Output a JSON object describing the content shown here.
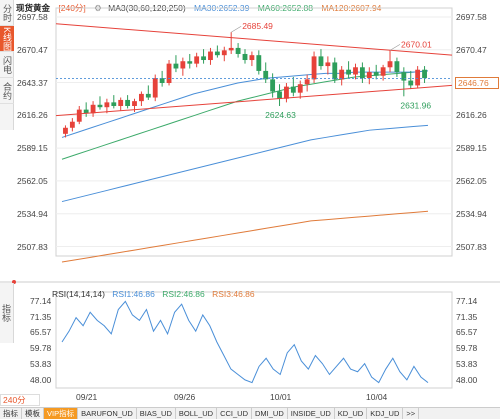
{
  "legend": {
    "title": "现货黄金",
    "period": "[240分]",
    "ma_name": "MA3(30,60,120,250)",
    "ma30": "MA30:2652.39",
    "ma60": "MA60:2652.88",
    "ma120": "MA120:2607.94"
  },
  "tabs": {
    "left": [
      "分时图",
      "K线图",
      "闪电图",
      "合约资料"
    ],
    "active_left": "K线图",
    "indicator": "指标"
  },
  "price_axis": {
    "left": [
      "2697.58",
      "2670.47",
      "2643.37",
      "2616.26",
      "2589.15",
      "2562.05",
      "2534.94",
      "2507.83"
    ],
    "right": [
      "2697.58",
      "2670.47",
      "2643.37",
      "2616.26",
      "2589.15",
      "2562.05",
      "2534.94",
      "2507.83"
    ],
    "current_price": "2646.76"
  },
  "annotations": {
    "high1": "2685.49",
    "high2": "2670.01",
    "low1": "2624.63",
    "low2": "2631.96"
  },
  "rsi": {
    "name": "RSI(14,14,14)",
    "rsi1": "RSI1:46.86",
    "rsi2": "RSI2:46.86",
    "rsi3": "RSI3:46.86",
    "axis": [
      "77.14",
      "71.35",
      "65.57",
      "59.78",
      "53.83",
      "48.00"
    ]
  },
  "dates": [
    "09/21",
    "09/26",
    "10/01",
    "10/04"
  ],
  "period_select": "240分",
  "bottom_tabs": [
    "指标",
    "模板",
    "VIP指标",
    "BARUFON_UD",
    "BIAS_UD",
    "BOLL_UD",
    "CCI_UD",
    "DMI_UD",
    "INSIDE_UD",
    "KD_UD",
    "KDJ_UD",
    ">>"
  ],
  "active_bottom_tab": "VIP指标",
  "colors": {
    "up": "#e6423a",
    "down": "#2e9e5b",
    "ma30": "#4a8fd8",
    "ma60": "#3caa6a",
    "ma120": "#e07b3a",
    "trendline": "#e6423a",
    "rsi": "#4a8fd8"
  },
  "chart_data": {
    "type": "candlestick",
    "candles": [
      {
        "o": 2601,
        "h": 2608,
        "l": 2598,
        "c": 2606
      },
      {
        "o": 2606,
        "h": 2614,
        "l": 2603,
        "c": 2611
      },
      {
        "o": 2611,
        "h": 2624,
        "l": 2609,
        "c": 2621
      },
      {
        "o": 2621,
        "h": 2627,
        "l": 2615,
        "c": 2618
      },
      {
        "o": 2618,
        "h": 2628,
        "l": 2615,
        "c": 2625
      },
      {
        "o": 2625,
        "h": 2632,
        "l": 2621,
        "c": 2623
      },
      {
        "o": 2623,
        "h": 2630,
        "l": 2618,
        "c": 2627
      },
      {
        "o": 2627,
        "h": 2633,
        "l": 2622,
        "c": 2624
      },
      {
        "o": 2624,
        "h": 2631,
        "l": 2620,
        "c": 2629
      },
      {
        "o": 2629,
        "h": 2633,
        "l": 2622,
        "c": 2624
      },
      {
        "o": 2624,
        "h": 2630,
        "l": 2619,
        "c": 2628
      },
      {
        "o": 2628,
        "h": 2636,
        "l": 2624,
        "c": 2634
      },
      {
        "o": 2634,
        "h": 2641,
        "l": 2629,
        "c": 2631
      },
      {
        "o": 2631,
        "h": 2650,
        "l": 2628,
        "c": 2647
      },
      {
        "o": 2647,
        "h": 2653,
        "l": 2640,
        "c": 2643
      },
      {
        "o": 2643,
        "h": 2662,
        "l": 2641,
        "c": 2659
      },
      {
        "o": 2659,
        "h": 2666,
        "l": 2652,
        "c": 2655
      },
      {
        "o": 2655,
        "h": 2664,
        "l": 2649,
        "c": 2661
      },
      {
        "o": 2661,
        "h": 2667,
        "l": 2655,
        "c": 2659
      },
      {
        "o": 2659,
        "h": 2668,
        "l": 2656,
        "c": 2665
      },
      {
        "o": 2665,
        "h": 2671,
        "l": 2659,
        "c": 2662
      },
      {
        "o": 2662,
        "h": 2672,
        "l": 2658,
        "c": 2669
      },
      {
        "o": 2669,
        "h": 2674,
        "l": 2664,
        "c": 2666
      },
      {
        "o": 2666,
        "h": 2673,
        "l": 2661,
        "c": 2670
      },
      {
        "o": 2670,
        "h": 2685,
        "l": 2667,
        "c": 2672
      },
      {
        "o": 2672,
        "h": 2676,
        "l": 2664,
        "c": 2667
      },
      {
        "o": 2667,
        "h": 2671,
        "l": 2659,
        "c": 2662
      },
      {
        "o": 2662,
        "h": 2669,
        "l": 2657,
        "c": 2666
      },
      {
        "o": 2666,
        "h": 2670,
        "l": 2650,
        "c": 2653
      },
      {
        "o": 2653,
        "h": 2660,
        "l": 2643,
        "c": 2646
      },
      {
        "o": 2646,
        "h": 2651,
        "l": 2631,
        "c": 2636
      },
      {
        "o": 2636,
        "h": 2642,
        "l": 2624,
        "c": 2630
      },
      {
        "o": 2630,
        "h": 2643,
        "l": 2627,
        "c": 2640
      },
      {
        "o": 2640,
        "h": 2648,
        "l": 2632,
        "c": 2635
      },
      {
        "o": 2635,
        "h": 2645,
        "l": 2630,
        "c": 2642
      },
      {
        "o": 2642,
        "h": 2650,
        "l": 2636,
        "c": 2646
      },
      {
        "o": 2646,
        "h": 2669,
        "l": 2643,
        "c": 2665
      },
      {
        "o": 2665,
        "h": 2671,
        "l": 2654,
        "c": 2657
      },
      {
        "o": 2657,
        "h": 2665,
        "l": 2650,
        "c": 2660
      },
      {
        "o": 2660,
        "h": 2664,
        "l": 2643,
        "c": 2646
      },
      {
        "o": 2646,
        "h": 2657,
        "l": 2641,
        "c": 2654
      },
      {
        "o": 2654,
        "h": 2661,
        "l": 2647,
        "c": 2650
      },
      {
        "o": 2650,
        "h": 2659,
        "l": 2646,
        "c": 2656
      },
      {
        "o": 2656,
        "h": 2660,
        "l": 2643,
        "c": 2647
      },
      {
        "o": 2647,
        "h": 2656,
        "l": 2642,
        "c": 2652
      },
      {
        "o": 2652,
        "h": 2658,
        "l": 2646,
        "c": 2649
      },
      {
        "o": 2649,
        "h": 2658,
        "l": 2645,
        "c": 2656
      },
      {
        "o": 2656,
        "h": 2670,
        "l": 2652,
        "c": 2661
      },
      {
        "o": 2661,
        "h": 2664,
        "l": 2648,
        "c": 2652
      },
      {
        "o": 2652,
        "h": 2656,
        "l": 2632,
        "c": 2645
      },
      {
        "o": 2645,
        "h": 2653,
        "l": 2638,
        "c": 2641
      },
      {
        "o": 2641,
        "h": 2657,
        "l": 2639,
        "c": 2654
      },
      {
        "o": 2654,
        "h": 2657,
        "l": 2643,
        "c": 2647
      }
    ],
    "ma30": [
      2598,
      2602,
      2606,
      2610,
      2614,
      2618,
      2622,
      2626,
      2630,
      2634,
      2637,
      2640,
      2643,
      2645,
      2647,
      2648,
      2649,
      2650,
      2651,
      2651,
      2652,
      2652,
      2652,
      2652,
      2652,
      2653
    ],
    "ma60": [
      2580,
      2584,
      2588,
      2592,
      2596,
      2600,
      2604,
      2608,
      2612,
      2616,
      2620,
      2624,
      2628,
      2631,
      2634,
      2637,
      2640,
      2642,
      2644,
      2646,
      2648,
      2649,
      2650,
      2651,
      2652,
      2653
    ],
    "ma120": [
      2545,
      2548,
      2551,
      2554,
      2557,
      2560,
      2563,
      2566,
      2569,
      2572,
      2575,
      2578,
      2581,
      2584,
      2587,
      2590,
      2593,
      2596,
      2598,
      2600,
      2602,
      2604,
      2605,
      2606,
      2607,
      2608
    ],
    "ma250": [
      2495,
      2497,
      2499,
      2501,
      2503,
      2505,
      2507,
      2509,
      2511,
      2513,
      2515,
      2517,
      2519,
      2521,
      2523,
      2525,
      2527,
      2529,
      2530,
      2531,
      2532,
      2533,
      2534,
      2535,
      2536,
      2537
    ],
    "rsi_values": [
      62,
      66,
      71,
      68,
      73,
      70,
      68,
      65,
      74,
      77,
      72,
      70,
      74,
      66,
      70,
      65,
      73,
      76,
      70,
      66,
      72,
      68,
      62,
      57,
      52,
      50,
      48,
      47,
      53,
      56,
      52,
      50,
      58,
      61,
      55,
      52,
      57,
      54,
      50,
      53,
      56,
      52,
      51,
      54,
      49,
      47,
      52,
      56,
      51,
      48,
      53,
      49,
      47
    ],
    "ylim": [
      2500,
      2705
    ],
    "rsi_ylim": [
      45,
      79
    ],
    "trendline_upper": {
      "from": 2692,
      "to": 2666
    },
    "trendline_lower": {
      "from": 2616,
      "to": 2641
    }
  }
}
